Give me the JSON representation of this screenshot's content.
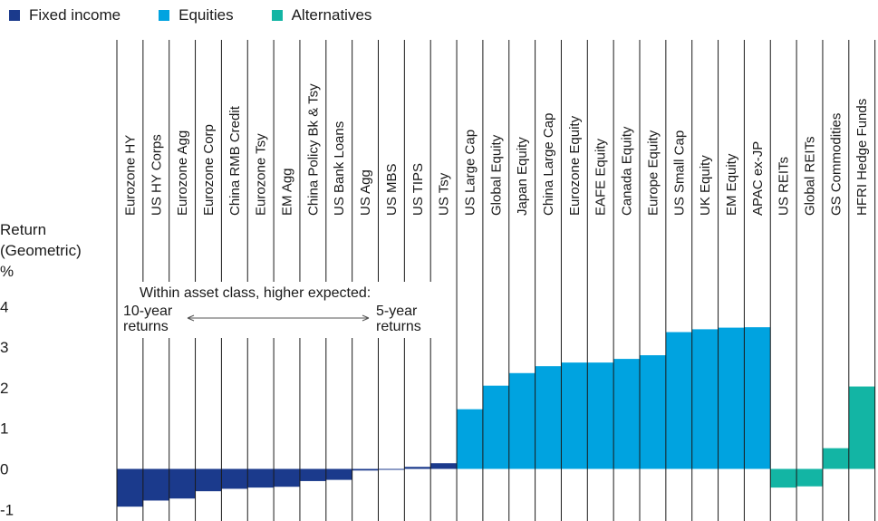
{
  "legend": [
    {
      "label": "Fixed income",
      "color": "#1b3a8c"
    },
    {
      "label": "Equities",
      "color": "#00a3e0"
    },
    {
      "label": "Alternatives",
      "color": "#13b5a4"
    }
  ],
  "axis": {
    "ylabel_line1": "Return",
    "ylabel_line2": "(Geometric)",
    "ylabel_line3": "%"
  },
  "annotation": {
    "heading": "Within asset class, higher expected:",
    "left_line1": "10-year",
    "left_line2": "returns",
    "right_line1": "5-year",
    "right_line2": "returns"
  },
  "chart_data": {
    "type": "bar",
    "ylim": [
      -1.2,
      4.6
    ],
    "yticks": [
      -1,
      0,
      1,
      2,
      3,
      4
    ],
    "categories": [
      "Eurozone HY",
      "US HY Corps",
      "Eurozone Agg",
      "Eurozone Corp",
      "China RMB Credit",
      "Eurozone Tsy",
      "EM Agg",
      "China Policy Bk & Tsy",
      "US Bank Loans",
      "US Agg",
      "US MBS",
      "US TIPS",
      "US Tsy",
      "US Large Cap",
      "Global Equity",
      "Japan Equity",
      "China Large Cap",
      "Eurozone Equity",
      "EAFE Equity",
      "Canada Equity",
      "Europe Equity",
      "US Small Cap",
      "UK Equity",
      "EM Equity",
      "APAC ex-JP",
      "US REITs",
      "Global REITs",
      "GS Commodities",
      "HFRI Hedge Funds"
    ],
    "groups": [
      "Fixed income",
      "Fixed income",
      "Fixed income",
      "Fixed income",
      "Fixed income",
      "Fixed income",
      "Fixed income",
      "Fixed income",
      "Fixed income",
      "Fixed income",
      "Fixed income",
      "Fixed income",
      "Fixed income",
      "Equities",
      "Equities",
      "Equities",
      "Equities",
      "Equities",
      "Equities",
      "Equities",
      "Equities",
      "Equities",
      "Equities",
      "Equities",
      "Equities",
      "Alternatives",
      "Alternatives",
      "Alternatives",
      "Alternatives"
    ],
    "values": [
      -0.93,
      -0.78,
      -0.73,
      -0.55,
      -0.49,
      -0.46,
      -0.44,
      -0.3,
      -0.27,
      -0.04,
      -0.02,
      0.05,
      0.14,
      1.47,
      2.05,
      2.36,
      2.53,
      2.62,
      2.62,
      2.71,
      2.8,
      3.37,
      3.44,
      3.48,
      3.49,
      -0.46,
      -0.43,
      0.51,
      2.03
    ],
    "grid": false,
    "legend_position": "top-left"
  }
}
